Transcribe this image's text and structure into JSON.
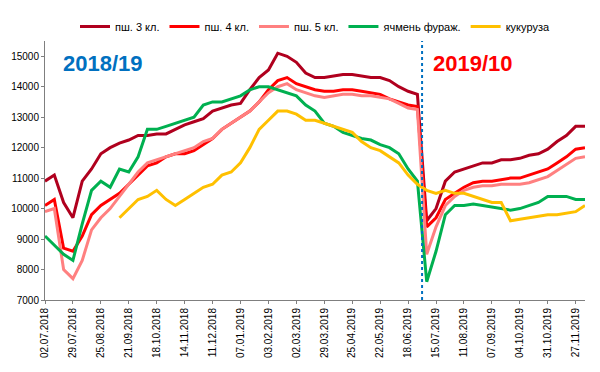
{
  "chart_data": {
    "type": "line",
    "categories": [
      "02.07.2018",
      null,
      null,
      "29.07.2018",
      null,
      null,
      "25.08.2018",
      null,
      null,
      "21.09.2018",
      null,
      null,
      "18.10.2018",
      null,
      null,
      "14.11.2018",
      null,
      null,
      "11.12.2018",
      null,
      null,
      "07.01.2019",
      null,
      null,
      "03.02.2019",
      null,
      null,
      "02.03.2019",
      null,
      null,
      "29.03.2019",
      null,
      null,
      "25.04.2019",
      null,
      null,
      "22.05.2019",
      null,
      null,
      "18.06.2019",
      null,
      null,
      "15.07.2019",
      null,
      null,
      "11.08.2019",
      null,
      null,
      "07.09.2019",
      null,
      null,
      "04.10.2019",
      null,
      null,
      "31.10.2019",
      null,
      null,
      "27.11.2019",
      null
    ],
    "series": [
      {
        "name": "пш. 3 кл.",
        "color": "#b0001e",
        "values": [
          10900,
          11100,
          10200,
          9700,
          10900,
          11300,
          11800,
          12000,
          12150,
          12250,
          12400,
          12400,
          12450,
          12450,
          12600,
          12750,
          12850,
          12950,
          13200,
          13300,
          13400,
          13450,
          13900,
          14300,
          14550,
          15100,
          15000,
          14800,
          14450,
          14300,
          14300,
          14350,
          14400,
          14400,
          14350,
          14300,
          14300,
          14200,
          14000,
          13850,
          13750,
          9600,
          10000,
          10900,
          11200,
          11300,
          11400,
          11500,
          11500,
          11600,
          11600,
          11650,
          11750,
          11800,
          11950,
          12200,
          12400,
          12700,
          12700
        ]
      },
      {
        "name": "пш. 4 кл.",
        "color": "#ff0000",
        "values": [
          10100,
          10300,
          8700,
          8600,
          9100,
          9800,
          10100,
          10300,
          10500,
          10800,
          11100,
          11400,
          11500,
          11700,
          11800,
          11800,
          11900,
          12100,
          12300,
          12600,
          12800,
          13000,
          13200,
          13500,
          13900,
          14200,
          14300,
          14100,
          14000,
          13900,
          13850,
          13850,
          13900,
          13900,
          13850,
          13800,
          13750,
          13600,
          13500,
          13400,
          13350,
          9400,
          9700,
          10300,
          10500,
          10700,
          10850,
          10900,
          10900,
          10950,
          11000,
          11000,
          11100,
          11200,
          11300,
          11500,
          11700,
          11950,
          12000
        ]
      },
      {
        "name": "пш. 5 кл.",
        "color": "#ff8080",
        "values": [
          9900,
          10000,
          8000,
          7700,
          8300,
          9300,
          9700,
          10000,
          10400,
          10800,
          11200,
          11500,
          11600,
          11700,
          11800,
          11900,
          12000,
          12200,
          12300,
          12600,
          12800,
          13000,
          13200,
          13500,
          13800,
          14000,
          14100,
          13900,
          13800,
          13700,
          13650,
          13700,
          13750,
          13750,
          13700,
          13700,
          13650,
          13600,
          13450,
          13300,
          13250,
          8500,
          9400,
          10100,
          10400,
          10600,
          10700,
          10750,
          10750,
          10800,
          10800,
          10800,
          10850,
          10950,
          11050,
          11250,
          11450,
          11650,
          11700
        ]
      },
      {
        "name": "ячмень фураж.",
        "color": "#00b050",
        "values": [
          9100,
          8800,
          8500,
          8300,
          9500,
          10600,
          10900,
          10700,
          11300,
          11200,
          11700,
          12600,
          12600,
          12700,
          12800,
          12900,
          13000,
          13400,
          13500,
          13500,
          13600,
          13700,
          13900,
          14000,
          14000,
          13900,
          13800,
          13700,
          13400,
          13200,
          12800,
          12700,
          12500,
          12400,
          12300,
          12250,
          12100,
          12000,
          11800,
          11300,
          10900,
          7600,
          8600,
          9800,
          10100,
          10100,
          10150,
          10100,
          10050,
          10000,
          9950,
          10000,
          10100,
          10200,
          10400,
          10400,
          10400,
          10300,
          10300
        ]
      },
      {
        "name": "кукуруза",
        "color": "#ffc000",
        "values": [
          null,
          null,
          null,
          null,
          null,
          null,
          null,
          null,
          9700,
          10000,
          10300,
          10400,
          10600,
          10300,
          10100,
          10300,
          10500,
          10700,
          10800,
          11100,
          11200,
          11500,
          12000,
          12600,
          12900,
          13200,
          13200,
          13100,
          12900,
          12900,
          12800,
          12700,
          12600,
          12500,
          12200,
          12000,
          11900,
          11700,
          11500,
          11100,
          10800,
          10600,
          10500,
          10600,
          10500,
          10500,
          10400,
          10300,
          10200,
          10200,
          9600,
          9650,
          9700,
          9750,
          9800,
          9800,
          9850,
          9900,
          10100
        ]
      }
    ],
    "annotations": [
      {
        "text": "2018/19",
        "color": "#0070c0"
      },
      {
        "text": "2019/10",
        "color": "#ff0000"
      }
    ],
    "ylim": [
      7000,
      15500
    ],
    "yticks": [
      7000,
      8000,
      9000,
      10000,
      11000,
      12000,
      13000,
      14000,
      15000
    ],
    "grid": false,
    "legend": "top"
  }
}
